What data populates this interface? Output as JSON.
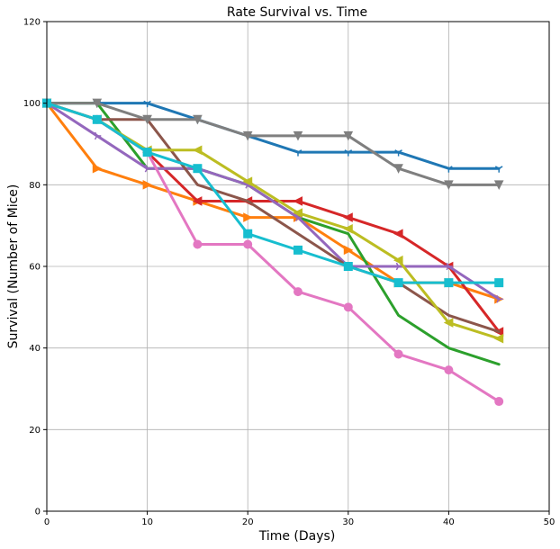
{
  "chart_data": {
    "type": "line",
    "title": "Rate Survival vs. Time",
    "xlabel": "Time (Days)",
    "ylabel": "Survival (Number of Mice)",
    "xlim": [
      0,
      50
    ],
    "ylim": [
      0,
      120
    ],
    "xticks": [
      "0",
      "10",
      "20",
      "30",
      "40",
      "50"
    ],
    "yticks": [
      "0",
      "20",
      "40",
      "60",
      "80",
      "100",
      "120"
    ],
    "grid": true,
    "x": [
      0,
      5,
      10,
      15,
      20,
      25,
      30,
      35,
      40,
      45
    ],
    "series": [
      {
        "color": "#1f77b4",
        "marker": "tri_down",
        "values": [
          100,
          100,
          100,
          96,
          92,
          88,
          88,
          88,
          84,
          84
        ]
      },
      {
        "color": "#ff7f0e",
        "marker": "triangle-right",
        "values": [
          100,
          84,
          80,
          76,
          72,
          72,
          64,
          56,
          56,
          52
        ]
      },
      {
        "color": "#2ca02c",
        "marker": "none",
        "values": [
          100,
          100,
          84,
          84,
          80,
          72,
          68,
          48,
          40,
          36
        ]
      },
      {
        "color": "#d62728",
        "marker": "triangle-left",
        "values": [
          100,
          96,
          88,
          76,
          76,
          76,
          72,
          68,
          60,
          44
        ]
      },
      {
        "color": "#9467bd",
        "marker": "tri_right",
        "values": [
          100,
          92,
          84,
          84,
          80,
          72,
          60,
          60,
          60,
          52
        ]
      },
      {
        "color": "#8c564b",
        "marker": "none",
        "values": [
          100,
          96,
          96,
          80,
          76,
          68,
          60,
          56,
          48,
          44
        ]
      },
      {
        "color": "#e377c2",
        "marker": "circle",
        "values": [
          100,
          96,
          88,
          65.4,
          65.4,
          53.8,
          50,
          38.5,
          34.6,
          26.9
        ]
      },
      {
        "color": "#7f7f7f",
        "marker": "triangle-down",
        "values": [
          100,
          100,
          96,
          96,
          92,
          92,
          92,
          84,
          80,
          80
        ]
      },
      {
        "color": "#bcbd22",
        "marker": "triangle-left",
        "values": [
          100,
          96,
          88.5,
          88.5,
          80.8,
          73.1,
          69.2,
          61.5,
          46.2,
          42.3
        ]
      },
      {
        "color": "#17becf",
        "marker": "square",
        "values": [
          100,
          96,
          88,
          84,
          68,
          64,
          60,
          56,
          56,
          56
        ]
      }
    ]
  }
}
